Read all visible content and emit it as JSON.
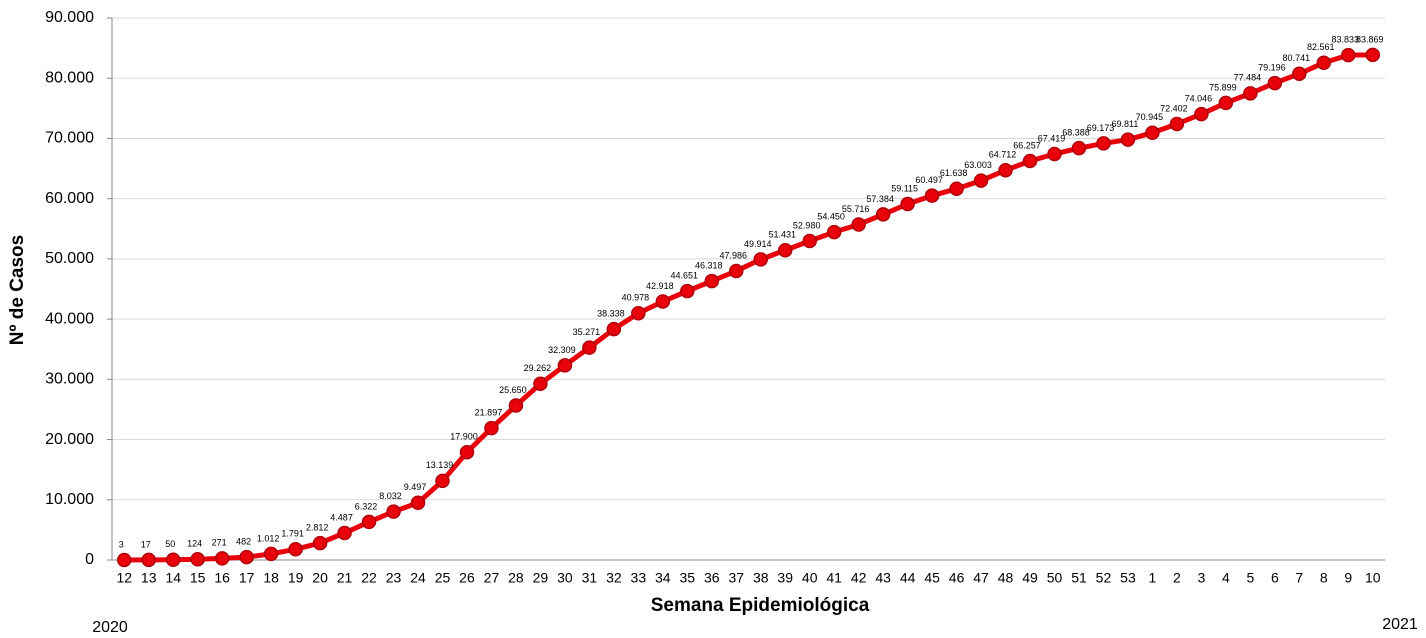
{
  "chart_data": {
    "type": "line",
    "y_label": "Nº de Casos",
    "x_label": "Semana Epidemiológica",
    "annotations": [
      "2020",
      "2021"
    ],
    "categories": [
      "12",
      "13",
      "14",
      "15",
      "16",
      "17",
      "18",
      "19",
      "20",
      "21",
      "22",
      "23",
      "24",
      "25",
      "26",
      "27",
      "28",
      "29",
      "30",
      "31",
      "32",
      "33",
      "34",
      "35",
      "36",
      "37",
      "38",
      "39",
      "40",
      "41",
      "42",
      "43",
      "44",
      "45",
      "46",
      "47",
      "48",
      "49",
      "50",
      "51",
      "52",
      "53",
      "1",
      "2",
      "3",
      "4",
      "5",
      "6",
      "7",
      "8",
      "9",
      "10"
    ],
    "values": [
      3,
      17,
      50,
      124,
      271,
      482,
      1012,
      1791,
      2812,
      4487,
      6322,
      8032,
      9497,
      13139,
      17900,
      21897,
      25650,
      29262,
      32309,
      35271,
      38338,
      40978,
      42918,
      44651,
      46318,
      47986,
      49914,
      51431,
      52980,
      54450,
      55716,
      57384,
      59115,
      60497,
      61638,
      63003,
      64712,
      66257,
      67419,
      68388,
      69173,
      69811,
      70945,
      72402,
      74046,
      75899,
      77484,
      79196,
      80741,
      82561,
      83833,
      83869
    ],
    "value_labels": [
      "3",
      "17",
      "50",
      "124",
      "271",
      "482",
      "1.012",
      "1.791",
      "2.812",
      "4.487",
      "6.322",
      "8.032",
      "9.497",
      "13.139",
      "17.900",
      "21.897",
      "25.650",
      "29.262",
      "32.309",
      "35.271",
      "38.338",
      "40.978",
      "42.918",
      "44.651",
      "46.318",
      "47.986",
      "49.914",
      "51.431",
      "52.980",
      "54.450",
      "55.716",
      "57.384",
      "59.115",
      "60.497",
      "61.638",
      "63.003",
      "64.712",
      "66.257",
      "67.419",
      "68.388",
      "69.173",
      "69.811",
      "70.945",
      "72.402",
      "74.046",
      "75.899",
      "77.484",
      "79.196",
      "80.741",
      "82.561",
      "83.833",
      "83.869"
    ],
    "color": "#e8000b",
    "ylim": [
      0,
      90000
    ],
    "yticks": [
      0,
      {
        "value": 10000,
        "label": "10.000"
      },
      {
        "value": 20000,
        "label": "20.000"
      },
      {
        "value": 30000,
        "label": "30.000"
      },
      {
        "value": 40000,
        "label": "40.000"
      },
      {
        "value": 50000,
        "label": "50.000"
      },
      {
        "value": 60000,
        "label": "60.000"
      },
      {
        "value": 70000,
        "label": "70.000"
      },
      {
        "value": 80000,
        "label": "80.000"
      },
      {
        "value": 90000,
        "label": "90.000"
      }
    ],
    "grid": true
  }
}
